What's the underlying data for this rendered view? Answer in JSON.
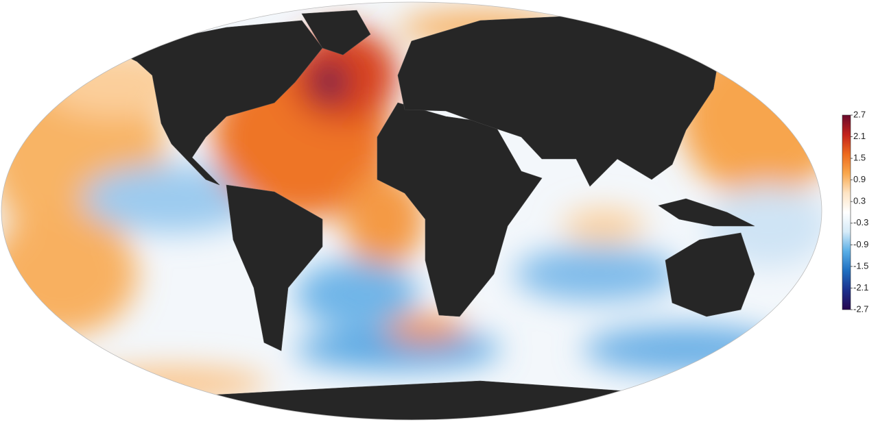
{
  "chart_data": {
    "type": "map",
    "colorbar": {
      "lim": [
        -2.7,
        2.7
      ],
      "ticks": [
        2.7,
        2.1,
        1.5,
        0.9,
        0.3,
        -0.3,
        -0.9,
        -1.5,
        -2.1,
        -2.7
      ],
      "colors": [
        "#26064f",
        "#1b2f8c",
        "#1f6fc0",
        "#5aaee6",
        "#d6ebf8",
        "#ffffff",
        "#fde4c4",
        "#f9a74c",
        "#ed6a1e",
        "#c3221c",
        "#6a0b2d"
      ]
    }
  }
}
